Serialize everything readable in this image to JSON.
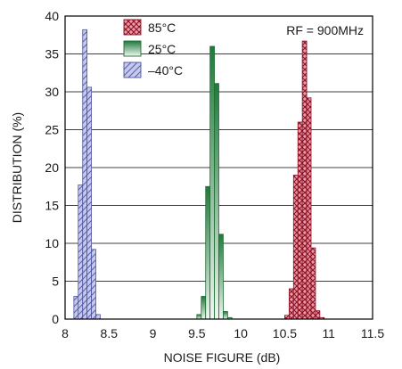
{
  "chart_data": {
    "type": "bar",
    "xlabel": "NOISE FIGURE (dB)",
    "ylabel": "DISTRIBUTION (%)",
    "xlim": [
      8,
      11.5
    ],
    "ylim": [
      0,
      40
    ],
    "x_ticks": [
      "8",
      "8.5",
      "9",
      "9.5",
      "10",
      "10.5",
      "11",
      "11.5"
    ],
    "y_ticks": [
      "0",
      "5",
      "10",
      "15",
      "20",
      "25",
      "30",
      "35",
      "40"
    ],
    "bin_width": 0.05,
    "annotation": "RF = 900MHz",
    "legend_position": "top-left",
    "grid": "horizontal",
    "series": [
      {
        "name": "85°C",
        "color": "#c8283c",
        "pattern": "crosshatch",
        "bins": [
          {
            "x": 10.5,
            "y": 0.5
          },
          {
            "x": 10.55,
            "y": 4
          },
          {
            "x": 10.6,
            "y": 19
          },
          {
            "x": 10.65,
            "y": 26
          },
          {
            "x": 10.7,
            "y": 36.7
          },
          {
            "x": 10.75,
            "y": 29.2
          },
          {
            "x": 10.8,
            "y": 9.4
          },
          {
            "x": 10.85,
            "y": 1.1
          },
          {
            "x": 10.9,
            "y": 0.2
          }
        ]
      },
      {
        "name": "25°C",
        "color": "#2e9048",
        "pattern": "gradient",
        "bins": [
          {
            "x": 9.5,
            "y": 0.6
          },
          {
            "x": 9.55,
            "y": 3
          },
          {
            "x": 9.6,
            "y": 17.5
          },
          {
            "x": 9.65,
            "y": 36
          },
          {
            "x": 9.7,
            "y": 31.1
          },
          {
            "x": 9.75,
            "y": 11.2
          },
          {
            "x": 9.8,
            "y": 1
          },
          {
            "x": 9.85,
            "y": 0.2
          }
        ]
      },
      {
        "name": "–40°C",
        "color": "#7d86c8",
        "pattern": "diagonal",
        "bins": [
          {
            "x": 8.1,
            "y": 3
          },
          {
            "x": 8.15,
            "y": 17.7
          },
          {
            "x": 8.2,
            "y": 38.2
          },
          {
            "x": 8.25,
            "y": 30.6
          },
          {
            "x": 8.3,
            "y": 9.2
          },
          {
            "x": 8.35,
            "y": 0.6
          }
        ]
      }
    ]
  }
}
